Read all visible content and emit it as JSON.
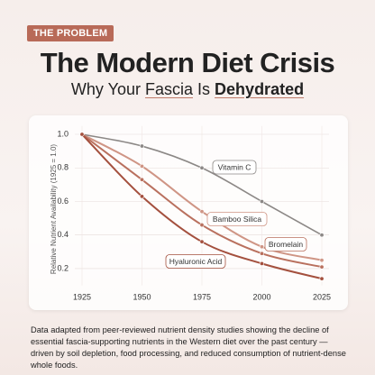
{
  "badge": "THE PROBLEM",
  "title": "The Modern Diet Crisis",
  "subtitle_parts": [
    "Why Your",
    "Fascia",
    "Is",
    "Dehydrated"
  ],
  "footnote": "Data adapted from peer-reviewed nutrient density studies showing the decline of essential fascia-supporting nutrients in the Western diet over the past century — driven by soil depletion, food processing, and reduced consumption of nutrient-dense whole foods.",
  "chart_data": {
    "type": "line",
    "y_label": "Relative Nutrient Availability (1925 = 1.0)",
    "x": [
      1925,
      1950,
      1975,
      2000,
      2025
    ],
    "xlim": [
      1922,
      2028
    ],
    "xticks": [
      1925,
      1950,
      1975,
      2000,
      2025
    ],
    "ylim": [
      0.1,
      1.05
    ],
    "yticks": [
      {
        "value": 0.2,
        "label": "0.2"
      },
      {
        "value": 0.4,
        "label": "0.4"
      },
      {
        "value": 0.6,
        "label": "0.6"
      },
      {
        "value": 0.8,
        "label": "0.8"
      },
      {
        "value": 1,
        "label": "1.0"
      }
    ],
    "grid": true,
    "series": [
      {
        "name": "Vitamin C",
        "color": "#8c8886",
        "values": [
          1.0,
          0.93,
          0.8,
          0.6,
          0.4
        ]
      },
      {
        "name": "Bamboo Silica",
        "color": "#cf9585",
        "values": [
          1.0,
          0.81,
          0.54,
          0.33,
          0.25
        ]
      },
      {
        "name": "Bromelain",
        "color": "#b9705e",
        "values": [
          1.0,
          0.73,
          0.46,
          0.29,
          0.21
        ]
      },
      {
        "name": "Hyaluronic Acid",
        "color": "#a4503e",
        "values": [
          1.0,
          0.63,
          0.36,
          0.23,
          0.14
        ]
      }
    ]
  }
}
